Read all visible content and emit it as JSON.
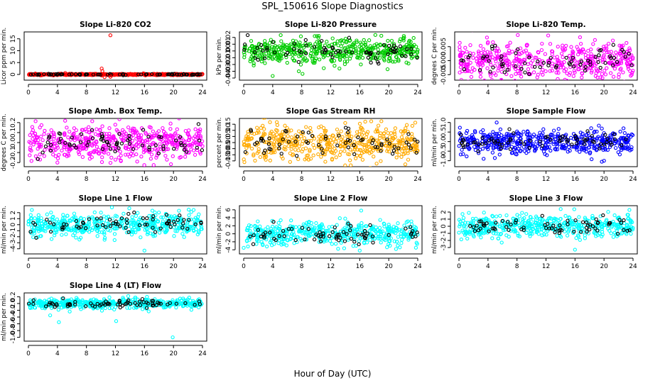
{
  "title": "SPL_150616  Slope Diagnostics",
  "xlabel": "Hour of Day (UTC)",
  "colors": {
    "other": "#000000"
  },
  "chart_data": [
    {
      "type": "scatter",
      "title": "Slope Li-820 CO2",
      "ylabel": "Licor ppm per min.",
      "xlim": [
        0,
        24
      ],
      "ylim": [
        -1.5,
        17
      ],
      "yticks": [
        0,
        5,
        10,
        15
      ],
      "xticks": [
        0,
        4,
        8,
        12,
        16,
        20,
        24
      ],
      "color": "#ff0000",
      "typical": 0.0,
      "spread": 0.15,
      "outliers": [
        [
          10.1,
          2.5
        ],
        [
          10.2,
          1.4
        ],
        [
          10.5,
          -1.1
        ],
        [
          11.3,
          -1.0
        ],
        [
          11.3,
          16.5
        ]
      ]
    },
    {
      "type": "scatter",
      "title": "Slope Li-820 Pressure",
      "ylabel": "kPa per min.",
      "xlim": [
        0,
        24
      ],
      "ylim": [
        -0.04,
        0.025
      ],
      "yticks": [
        -0.04,
        -0.03,
        -0.02,
        -0.01,
        0.0,
        0.01,
        0.02
      ],
      "xticks": [
        0,
        4,
        8,
        12,
        16,
        20,
        24
      ],
      "color": "#00cc00",
      "typical": 0.0,
      "spread": 0.009,
      "outliers": [
        [
          4.0,
          -0.037
        ],
        [
          7.6,
          -0.03
        ],
        [
          13.2,
          -0.026
        ],
        [
          9.8,
          0.022
        ],
        [
          10.1,
          0.022
        ],
        [
          1.2,
          -0.013
        ]
      ]
    },
    {
      "type": "scatter",
      "title": "Slope Li-820 Temp.",
      "ylabel": "degrees C per min.",
      "xlim": [
        0,
        24
      ],
      "ylim": [
        -0.0062,
        0.0095
      ],
      "yticks": [
        -0.005,
        0.0,
        0.005
      ],
      "xticks": [
        0,
        4,
        8,
        12,
        16,
        20,
        24
      ],
      "color": "#ff00ff",
      "typical": 0.0,
      "spread": 0.0032,
      "outliers": [
        [
          12.3,
          0.009
        ],
        [
          1.7,
          -0.0058
        ],
        [
          15.8,
          -0.0055
        ]
      ]
    },
    {
      "type": "scatter",
      "title": "Slope Amb. Box Temp.",
      "ylabel": "degrees C per min.",
      "xlim": [
        0,
        24
      ],
      "ylim": [
        -0.22,
        0.22
      ],
      "yticks": [
        -0.2,
        -0.1,
        0.0,
        0.1,
        0.2
      ],
      "xticks": [
        0,
        4,
        8,
        12,
        16,
        20,
        24
      ],
      "color": "#ff00ff",
      "typical": 0.0,
      "spread": 0.085,
      "outliers": [
        [
          4.0,
          -0.2
        ],
        [
          19.6,
          0.19
        ],
        [
          15.0,
          -0.19
        ]
      ]
    },
    {
      "type": "scatter",
      "title": "Slope Gas Stream RH",
      "ylabel": "percent per min.",
      "xlim": [
        0,
        24
      ],
      "ylim": [
        -0.18,
        0.18
      ],
      "yticks": [
        -0.15,
        -0.1,
        -0.05,
        0.0,
        0.05,
        0.1,
        0.15
      ],
      "xticks": [
        0,
        4,
        8,
        12,
        16,
        20,
        24
      ],
      "color": "#ffaa00",
      "typical": 0.0,
      "spread": 0.07,
      "outliers": [
        [
          0.1,
          -0.16
        ],
        [
          12.2,
          -0.14
        ],
        [
          14.0,
          0.16
        ]
      ]
    },
    {
      "type": "scatter",
      "title": "Slope Sample Flow",
      "ylabel": "ml/min per min.",
      "xlim": [
        0,
        24
      ],
      "ylim": [
        -1.2,
        1.1
      ],
      "yticks": [
        -1.0,
        -0.5,
        0.0,
        0.5,
        1.0
      ],
      "xticks": [
        0,
        4,
        8,
        12,
        16,
        20,
        24
      ],
      "color": "#0000ff",
      "typical": 0.0,
      "spread": 0.3,
      "outliers": [
        [
          5.2,
          1.0
        ],
        [
          19.7,
          -1.05
        ],
        [
          20.0,
          -1.0
        ],
        [
          3.4,
          -0.9
        ]
      ]
    },
    {
      "type": "scatter",
      "title": "Slope Line 1 Flow",
      "ylabel": "ml/min per min.",
      "xlim": [
        0,
        24
      ],
      "ylim": [
        -4.5,
        2.8
      ],
      "yticks": [
        -4,
        -3,
        -2,
        -1,
        0,
        1,
        2
      ],
      "xticks": [
        0,
        4,
        8,
        12,
        16,
        20,
        24
      ],
      "color": "#00ffff",
      "typical": 0.0,
      "spread": 0.9,
      "outliers": [
        [
          16.0,
          -4.3
        ],
        [
          22.1,
          2.5
        ],
        [
          10.5,
          -2.5
        ]
      ]
    },
    {
      "type": "scatter",
      "title": "Slope Line 2 Flow",
      "ylabel": "ml/min per min.",
      "xlim": [
        0,
        24
      ],
      "ylim": [
        -4.5,
        6.5
      ],
      "yticks": [
        -4,
        -2,
        0,
        2,
        4,
        6
      ],
      "xticks": [
        0,
        4,
        8,
        12,
        16,
        20,
        24
      ],
      "color": "#00ffff",
      "typical": 0.0,
      "spread": 1.4,
      "outliers": [
        [
          16.0,
          -4.2
        ],
        [
          16.2,
          5.8
        ],
        [
          14.0,
          3.8
        ],
        [
          21.0,
          -3.8
        ]
      ]
    },
    {
      "type": "scatter",
      "title": "Slope Line 3 Flow",
      "ylabel": "ml/min per min.",
      "xlim": [
        0,
        24
      ],
      "ylim": [
        -3.6,
        2.6
      ],
      "yticks": [
        -3,
        -2,
        -1,
        0,
        1,
        2
      ],
      "xticks": [
        0,
        4,
        8,
        12,
        16,
        20,
        24
      ],
      "color": "#00ffff",
      "typical": 0.0,
      "spread": 0.8,
      "outliers": [
        [
          16.0,
          -3.3
        ],
        [
          23.5,
          2.3
        ],
        [
          5.9,
          -2.3
        ],
        [
          15.9,
          2.4
        ]
      ]
    },
    {
      "type": "scatter",
      "title": "Slope Line 4 (LT) Flow",
      "ylabel": "ml/min per min.",
      "xlim": [
        0,
        24
      ],
      "ylim": [
        -1.05,
        0.25
      ],
      "yticks": [
        -1.0,
        -0.8,
        -0.6,
        -0.4,
        -0.2,
        0.0,
        0.2
      ],
      "xticks": [
        0,
        4,
        8,
        12,
        16,
        20,
        24
      ],
      "color": "#00ffff",
      "typical": 0.0,
      "spread": 0.07,
      "outliers": [
        [
          4.2,
          -0.55
        ],
        [
          12.1,
          -0.52
        ],
        [
          19.9,
          -1.0
        ],
        [
          3.0,
          -0.35
        ]
      ]
    }
  ]
}
